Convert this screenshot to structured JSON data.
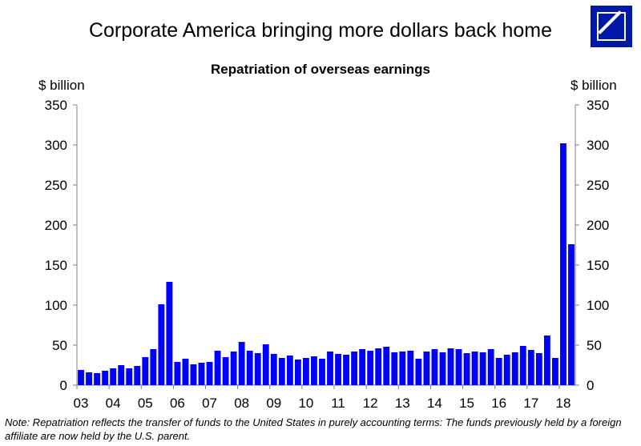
{
  "header": {
    "title": "Corporate America bringing more dollars back home",
    "logo": "deutsche-bank-logo"
  },
  "chart_data": {
    "type": "bar",
    "title": "Repatriation of overseas earnings",
    "ylabel_left": "$ billion",
    "ylabel_right": "$ billion",
    "ylim": [
      0,
      350
    ],
    "yticks": [
      0,
      50,
      100,
      150,
      200,
      250,
      300,
      350
    ],
    "x_tick_labels": [
      "03",
      "04",
      "05",
      "06",
      "07",
      "08",
      "09",
      "10",
      "11",
      "12",
      "13",
      "14",
      "15",
      "16",
      "17",
      "18"
    ],
    "grid": false,
    "bar_color": "#0000ff",
    "frequency": "quarterly, 2003 Q1 – 2018 Q2",
    "values": [
      19,
      16,
      15,
      18,
      21,
      25,
      21,
      24,
      35,
      45,
      101,
      129,
      29,
      33,
      26,
      28,
      29,
      43,
      35,
      42,
      54,
      43,
      40,
      51,
      39,
      34,
      37,
      32,
      34,
      36,
      33,
      42,
      39,
      38,
      42,
      45,
      43,
      46,
      48,
      41,
      42,
      43,
      33,
      42,
      45,
      41,
      46,
      45,
      40,
      42,
      41,
      45,
      34,
      38,
      41,
      49,
      44,
      40,
      62,
      34,
      302,
      176
    ]
  },
  "note": "Note:  Repatriation reflects the transfer of funds to the United States in purely accounting terms: The funds previously held by a foreign affiliate are now held by the U.S. parent."
}
